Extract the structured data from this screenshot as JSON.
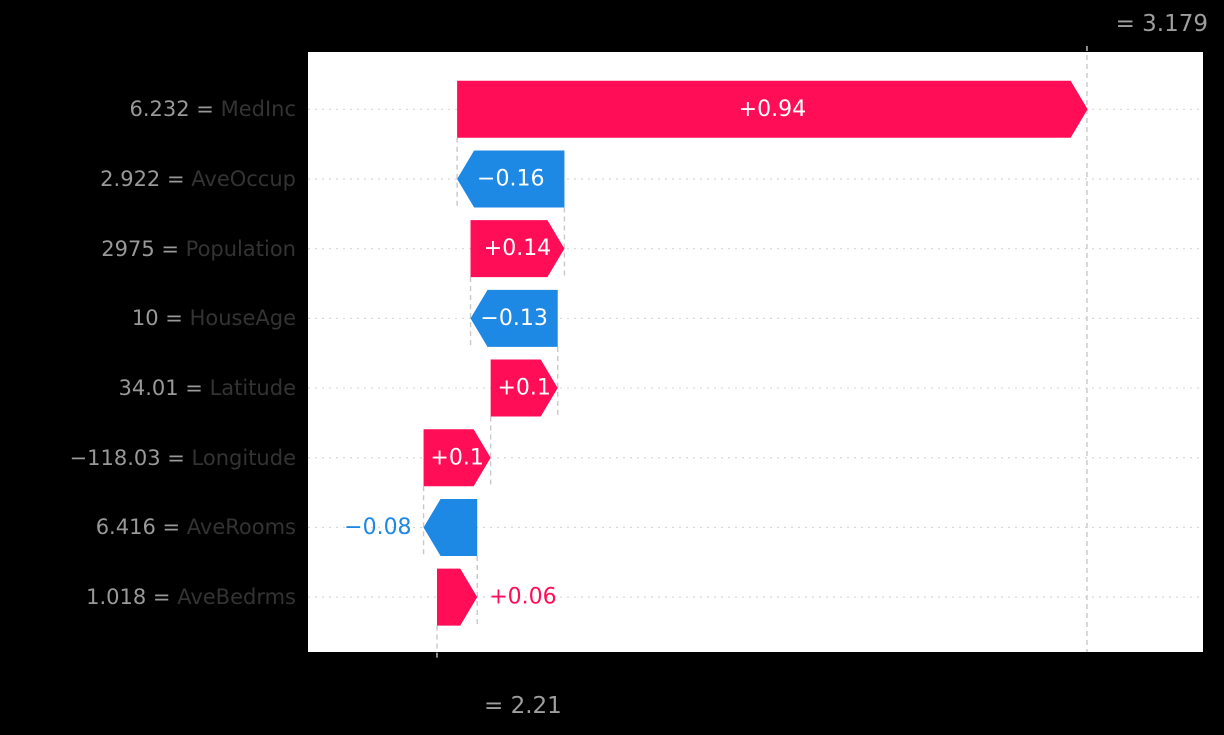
{
  "figure": {
    "fx_label": "= 3.179",
    "base_label": "= 2.21"
  },
  "chart_data": {
    "type": "bar",
    "variant": "shap-waterfall",
    "title": "",
    "xlabel": "",
    "ylabel": "",
    "legend_position": "none",
    "grid": "dotted-horizontal-rows",
    "base_value": 2.21,
    "fx_value": 3.179,
    "xlim": [
      2.0177,
      3.352
    ],
    "positive_color": "#ff0d57",
    "negative_color": "#1e88e5",
    "background_color": "#000000",
    "plot_background_color": "#ffffff",
    "gridline_color": "#d8d8d8",
    "connector_color": "#c8c8c8",
    "tick_value_color": "#999999",
    "tick_name_color": "#333333",
    "tick_separator": " = ",
    "features": [
      {
        "name": "MedInc",
        "data_value": "6.232",
        "shap": 0.94,
        "bar_label": "+0.94",
        "label_inside": true
      },
      {
        "name": "AveOccup",
        "data_value": "2.922",
        "shap": -0.16,
        "bar_label": "−0.16",
        "label_inside": true
      },
      {
        "name": "Population",
        "data_value": "2975",
        "shap": 0.14,
        "bar_label": "+0.14",
        "label_inside": true
      },
      {
        "name": "HouseAge",
        "data_value": "10",
        "shap": -0.13,
        "bar_label": "−0.13",
        "label_inside": true
      },
      {
        "name": "Latitude",
        "data_value": "34.01",
        "shap": 0.1,
        "bar_label": "+0.1",
        "label_inside": true
      },
      {
        "name": "Longitude",
        "data_value": "−118.03",
        "shap": 0.1,
        "bar_label": "+0.1",
        "label_inside": true
      },
      {
        "name": "AveRooms",
        "data_value": "6.416",
        "shap": -0.08,
        "bar_label": "−0.08",
        "label_inside": false
      },
      {
        "name": "AveBedrms",
        "data_value": "1.018",
        "shap": 0.06,
        "bar_label": "+0.06",
        "label_inside": false
      }
    ]
  }
}
